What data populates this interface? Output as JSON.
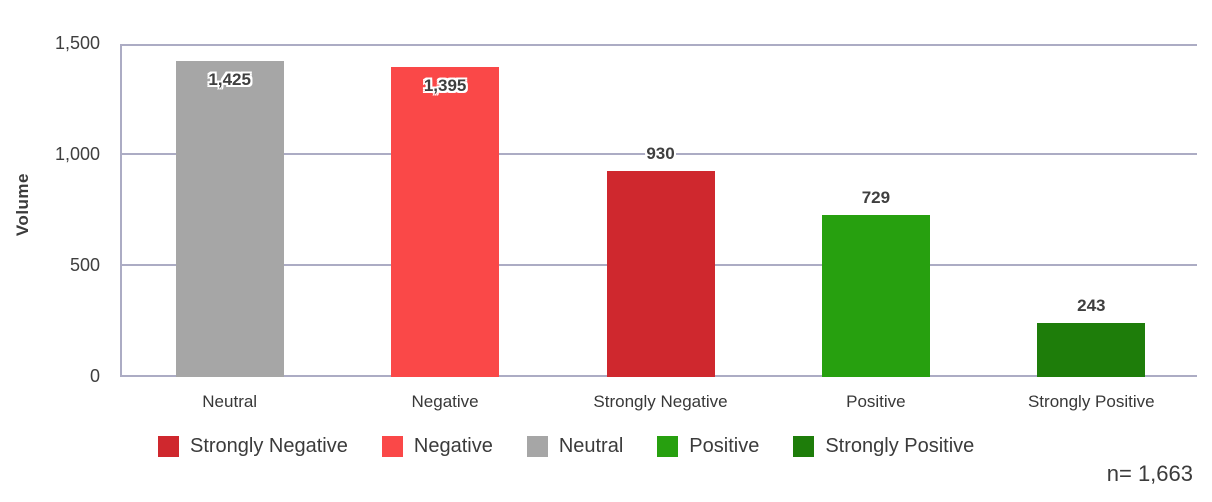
{
  "chart_data": {
    "type": "bar",
    "title": "",
    "xlabel": "",
    "ylabel": "Volume",
    "ylim": [
      0,
      1500
    ],
    "yticks": [
      0,
      500,
      1000,
      1500
    ],
    "ytick_labels": [
      "0",
      "500",
      "1,000",
      "1,500"
    ],
    "categories": [
      "Neutral",
      "Negative",
      "Strongly Negative",
      "Positive",
      "Strongly Positive"
    ],
    "values": [
      1425,
      1395,
      930,
      729,
      243
    ],
    "value_labels": [
      "1,425",
      "1,395",
      "930",
      "729",
      "243"
    ],
    "bar_colors": [
      "#A6A6A6",
      "#FA4848",
      "#CF282E",
      "#27A00F",
      "#1E7D0A"
    ],
    "value_label_placement": [
      "inside",
      "inside",
      "above",
      "above",
      "above"
    ],
    "grid": true,
    "legend_position": "bottom",
    "legend": [
      {
        "label": "Strongly Negative",
        "color": "#CF282E"
      },
      {
        "label": "Negative",
        "color": "#FA4848"
      },
      {
        "label": "Neutral",
        "color": "#A6A6A6"
      },
      {
        "label": "Positive",
        "color": "#27A00F"
      },
      {
        "label": "Strongly Positive",
        "color": "#1E7D0A"
      }
    ]
  },
  "footer": {
    "n_label": "n= 1,663"
  },
  "style_colors": {
    "axis_line": "#ACACC4",
    "label_text": "#3F3F3F"
  }
}
